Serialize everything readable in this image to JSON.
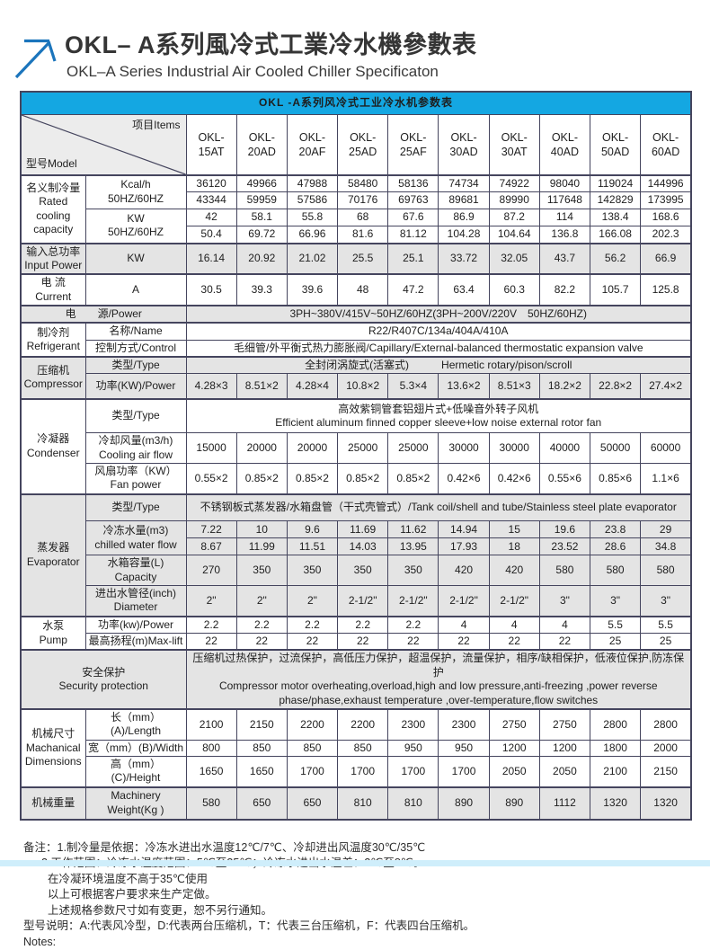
{
  "header": {
    "title_cn": "OKL– A系列風冷式工業冷水機參數表",
    "title_en": "OKL–A Series Industrial Air Cooled Chiller Specificaton"
  },
  "colors": {
    "table_header_blue": "#14a7e2",
    "row_shade_gray": "#e4e4e4",
    "border_navy": "#45455e",
    "bottom_bar_cyan": "#cfeefb",
    "arrow_blue": "#1b75bc"
  },
  "icons": {
    "arrow": "arrow-up-right-icon"
  },
  "table": {
    "title": "OKL -A系列风冷式工业冷水机参数表",
    "corner_model": "型号Model",
    "corner_items": "项目Items",
    "models": [
      "OKL-\n15AT",
      "OKL-\n20AD",
      "OKL-\n20AF",
      "OKL-\n25AD",
      "OKL-\n25AF",
      "OKL-\n30AD",
      "OKL-\n30AT",
      "OKL-\n40AD",
      "OKL-\n50AD",
      "OKL-\n60AD"
    ],
    "sections": {
      "rated": {
        "label": "名义制冷量\nRated\ncooling\ncapacity",
        "kcal_label": "Kcal/h\n50HZ/60HZ",
        "kw_label": "KW\n50HZ/60HZ",
        "kcal_50": [
          36120,
          49966,
          47988,
          58480,
          58136,
          74734,
          74922,
          98040,
          119024,
          144996
        ],
        "kcal_60": [
          43344,
          59959,
          57586,
          70176,
          69763,
          89681,
          89990,
          117648,
          142829,
          173995
        ],
        "kw_50": [
          42,
          58.1,
          55.8,
          68,
          67.6,
          86.9,
          87.2,
          114,
          138.4,
          168.6
        ],
        "kw_60": [
          50.4,
          69.72,
          66.96,
          81.6,
          81.12,
          104.28,
          104.64,
          136.8,
          166.08,
          202.3
        ]
      },
      "input_power": {
        "label": "输入总功率\nInput Power",
        "unit": "KW",
        "values": [
          16.14,
          20.92,
          21.02,
          25.5,
          25.1,
          33.72,
          32.05,
          43.7,
          56.2,
          66.9
        ]
      },
      "current": {
        "label": "电 流\nCurrent",
        "unit": "A",
        "values": [
          30.5,
          39.3,
          39.6,
          48,
          47.2,
          63.4,
          60.3,
          82.2,
          105.7,
          125.8
        ]
      },
      "power_source": {
        "label": "电　　源/Power",
        "value": "3PH~380V/415V~50HZ/60HZ(3PH~200V/220V　50HZ/60HZ)"
      },
      "refrigerant": {
        "label": "制冷剂\nRefrigerant",
        "name_label": "名称/Name",
        "name_value": "R22/R407C/134a/404A/410A",
        "control_label": "控制方式/Control",
        "control_value": "毛细管/外平衡式热力膨胀阀/Capillary/External-balanced thermostatic expansion valve"
      },
      "compressor": {
        "label": "压缩机\nCompressor",
        "type_label": "类型/Type",
        "type_value": "全封闭涡旋式(活塞式)　　　Hermetic rotary/pison/scroll",
        "power_label": "功率(KW)/Power",
        "power_values": [
          "4.28×3",
          "8.51×2",
          "4.28×4",
          "10.8×2",
          "5.3×4",
          "13.6×2",
          "8.51×3",
          "18.2×2",
          "22.8×2",
          "27.4×2"
        ]
      },
      "condenser": {
        "label": "冷凝器\nCondenser",
        "type_label": "类型/Type",
        "type_value": "高效紫铜管套铝翅片式+低噪音外转子风机\nEfficient aluminum finned copper sleeve+low noise external rotor fan",
        "airflow_label": "冷却风量(m3/h)\nCooling air flow",
        "airflow_values": [
          15000,
          20000,
          20000,
          25000,
          25000,
          30000,
          30000,
          40000,
          50000,
          60000
        ],
        "fan_label": "风扇功率（KW）\nFan power",
        "fan_values": [
          "0.55×2",
          "0.85×2",
          "0.85×2",
          "0.85×2",
          "0.85×2",
          "0.42×6",
          "0.42×6",
          "0.55×6",
          "0.85×6",
          "1.1×6"
        ]
      },
      "evaporator": {
        "label": "蒸发器\nEvaporator",
        "type_label": "类型/Type",
        "type_value": "不锈钢板式蒸发器/水箱盘管（干式壳管式）/Tank coil/shell and tube/Stainless steel plate evaporator",
        "water_label": "冷冻水量(m3)\nchilled water flow",
        "water_50": [
          7.22,
          10,
          9.6,
          11.69,
          11.62,
          14.94,
          15,
          19.6,
          23.8,
          29
        ],
        "water_60": [
          8.67,
          11.99,
          11.51,
          14.03,
          13.95,
          17.93,
          18,
          23.52,
          28.6,
          34.8
        ],
        "capacity_label": "水箱容量(L)\nCapacity",
        "capacity_values": [
          270,
          350,
          350,
          350,
          350,
          420,
          420,
          580,
          580,
          580
        ],
        "diameter_label": "进出水管径(inch)\nDiameter",
        "diameter_values": [
          "2\"",
          "2\"",
          "2\"",
          "2-1/2\"",
          "2-1/2\"",
          "2-1/2\"",
          "2-1/2\"",
          "3\"",
          "3\"",
          "3\""
        ]
      },
      "pump": {
        "label": "水泵\nPump",
        "power_label": "功率(kw)/Power",
        "power_values": [
          2.2,
          2.2,
          2.2,
          2.2,
          2.2,
          4,
          4,
          4,
          5.5,
          5.5
        ],
        "lift_label": "最高扬程(m)Max-lift",
        "lift_values": [
          22,
          22,
          22,
          22,
          22,
          22,
          22,
          22,
          25,
          25
        ]
      },
      "safety": {
        "label": "安全保护\nSecurity protection",
        "value": "压缩机过热保护，过流保护，高低压力保护，超温保护，流量保护，相序/缺相保护，低液位保护,防冻保护\nCompressor motor overheating,overload,high and low pressure,anti-freezing ,power reverse\nphase/phase,exhaust temperature ,over-temperature,flow switches"
      },
      "dimensions": {
        "label": "机械尺寸\nMachanical\nDimensions",
        "length_label": "长（mm）(A)/Length",
        "length_values": [
          2100,
          2150,
          2200,
          2200,
          2300,
          2300,
          2750,
          2750,
          2800,
          2800
        ],
        "width_label": "宽（mm）(B)/Width",
        "width_values": [
          800,
          850,
          850,
          850,
          950,
          950,
          1200,
          1200,
          1800,
          2000
        ],
        "height_label": "高（mm）(C)/Height",
        "height_values": [
          1650,
          1650,
          1700,
          1700,
          1700,
          1700,
          2050,
          2050,
          2100,
          2150
        ]
      },
      "weight": {
        "label": "机械重量",
        "unit_label": "Machinery\nWeight(Kg )",
        "values": [
          580,
          650,
          650,
          810,
          810,
          890,
          890,
          1112,
          1320,
          1320
        ]
      }
    }
  },
  "notes": [
    "备注：1.制冷量是依据：冷冻水进出水温度12℃/7℃、冷却进出风温度30℃/35℃",
    "2.工作范围：冷冻水温度范围：5℃至35℃；冷冻水进出水温差：3℃至8℃。",
    "在冷凝环境温度不高于35℃使用",
    "以上可根据客户要求来生产定做。",
    "上述规格参数尺寸如有变更，恕不另行通知。",
    "型号说明：A:代表风冷型，D:代表两台压缩机，T：代表三台压缩机，F：代表四台压缩机。",
    "Notes:"
  ]
}
